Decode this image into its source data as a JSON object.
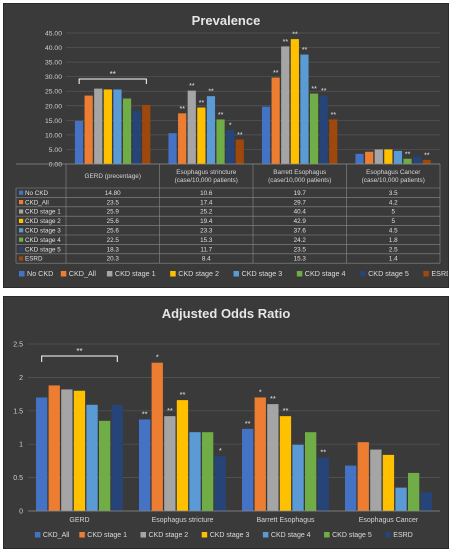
{
  "chart_data": [
    {
      "type": "bar",
      "title": "Prevalence",
      "categories": [
        "GERD (precentage)",
        "Esophagus strincture (case/10,000 patients)",
        "Barrett Esophagus (case/10,000 patients)",
        "Esophagus Cancer (case/10,000 patients)"
      ],
      "category_lines": [
        [
          "GERD (precentage)"
        ],
        [
          "Esophagus strincture",
          "(case/10,000 patients)"
        ],
        [
          "Barrett Esophagus",
          "(case/10,000 patients)"
        ],
        [
          "Esophagus Cancer",
          "(case/10,000 patients)"
        ]
      ],
      "ylim": [
        0,
        45
      ],
      "yticks": [
        "0.00",
        "5.00",
        "10.00",
        "15.00",
        "20.00",
        "25.00",
        "30.00",
        "35.00",
        "40.00",
        "45.00"
      ],
      "grid": true,
      "legend": "bottom",
      "series": [
        {
          "name": "No CKD",
          "color": "#4472c4",
          "values": [
            14.8,
            10.6,
            19.7,
            3.5
          ],
          "labels": [
            "14.80",
            "10.6",
            "19.7",
            "3.5"
          ]
        },
        {
          "name": "CKD_All",
          "color": "#ed7d31",
          "values": [
            23.5,
            17.4,
            29.7,
            4.2
          ],
          "labels": [
            "23.5",
            "17.4",
            "29.7",
            "4.2"
          ]
        },
        {
          "name": "CKD stage 1",
          "color": "#a5a5a5",
          "values": [
            25.9,
            25.2,
            40.4,
            5
          ],
          "labels": [
            "25.9",
            "25.2",
            "40.4",
            "5"
          ]
        },
        {
          "name": "CKD stage 2",
          "color": "#ffc000",
          "values": [
            25.6,
            19.4,
            42.9,
            5
          ],
          "labels": [
            "25.6",
            "19.4",
            "42.9",
            "5"
          ]
        },
        {
          "name": "CKD stage 3",
          "color": "#5b9bd5",
          "values": [
            25.6,
            23.3,
            37.6,
            4.5
          ],
          "labels": [
            "25.6",
            "23.3",
            "37.6",
            "4.5"
          ]
        },
        {
          "name": "CKD stage 4",
          "color": "#70ad47",
          "values": [
            22.5,
            15.3,
            24.2,
            1.8
          ],
          "labels": [
            "22.5",
            "15.3",
            "24.2",
            "1.8"
          ]
        },
        {
          "name": "CKD stage 5",
          "color": "#264478",
          "values": [
            18.3,
            11.7,
            23.5,
            2.5
          ],
          "labels": [
            "18.3",
            "11.7",
            "23.5",
            "2.5"
          ]
        },
        {
          "name": "ESRD",
          "color": "#9e480e",
          "values": [
            20.3,
            8.4,
            15.3,
            1.4
          ],
          "labels": [
            "20.3",
            "8.4",
            "15.3",
            "1.4"
          ]
        }
      ],
      "bracket_label": "**",
      "annotations": [
        [
          [],
          [],
          [],
          []
        ],
        [
          [],
          [
            "**"
          ],
          [
            "**"
          ],
          []
        ],
        [
          [],
          [
            "**"
          ],
          [
            "**"
          ],
          []
        ],
        [
          [],
          [
            "**"
          ],
          [
            "**"
          ],
          []
        ],
        [
          [],
          [
            "**"
          ],
          [
            "**"
          ],
          []
        ],
        [
          [],
          [
            "**"
          ],
          [
            "**"
          ],
          [
            "**"
          ]
        ],
        [
          [],
          [
            "*"
          ],
          [
            "**"
          ],
          []
        ],
        [
          [],
          [
            "**"
          ],
          [
            "**"
          ],
          [
            "**"
          ]
        ]
      ]
    },
    {
      "type": "bar",
      "title": "Adjusted Odds Ratio",
      "categories": [
        "GERD",
        "Esophagus stricture",
        "Barrett Esophagus",
        "Esophagus Cancer"
      ],
      "ylim": [
        0,
        2.5
      ],
      "yticks": [
        "0",
        "0.5",
        "1",
        "1.5",
        "2",
        "2.5"
      ],
      "grid": true,
      "legend": "bottom",
      "series": [
        {
          "name": "CKD_All",
          "color": "#4472c4",
          "values": [
            1.7,
            1.37,
            1.23,
            0.68
          ]
        },
        {
          "name": "CKD stage 1",
          "color": "#ed7d31",
          "values": [
            1.88,
            2.22,
            1.7,
            1.03
          ]
        },
        {
          "name": "CKD stage 2",
          "color": "#a5a5a5",
          "values": [
            1.82,
            1.42,
            1.6,
            0.92
          ]
        },
        {
          "name": "CKD stage 3",
          "color": "#ffc000",
          "values": [
            1.8,
            1.66,
            1.42,
            0.84
          ]
        },
        {
          "name": "CKD stage 4",
          "color": "#5b9bd5",
          "values": [
            1.59,
            1.18,
            0.99,
            0.35
          ]
        },
        {
          "name": "CKD stage 5",
          "color": "#70ad47",
          "values": [
            1.35,
            1.18,
            1.18,
            0.57
          ]
        },
        {
          "name": "ESRD",
          "color": "#264478",
          "values": [
            1.59,
            0.82,
            0.8,
            0.28
          ]
        }
      ],
      "bracket_label": "**",
      "annotations": [
        [
          [],
          [
            "**"
          ],
          [
            "**"
          ],
          []
        ],
        [
          [],
          [
            "*"
          ],
          [
            "*"
          ],
          []
        ],
        [
          [],
          [
            "**"
          ],
          [
            "**"
          ],
          []
        ],
        [
          [],
          [
            "**"
          ],
          [
            "**"
          ],
          []
        ],
        [
          [],
          [],
          [],
          []
        ],
        [
          [],
          [],
          [],
          []
        ],
        [
          [],
          [
            "*"
          ],
          [
            "**"
          ],
          []
        ]
      ]
    }
  ]
}
